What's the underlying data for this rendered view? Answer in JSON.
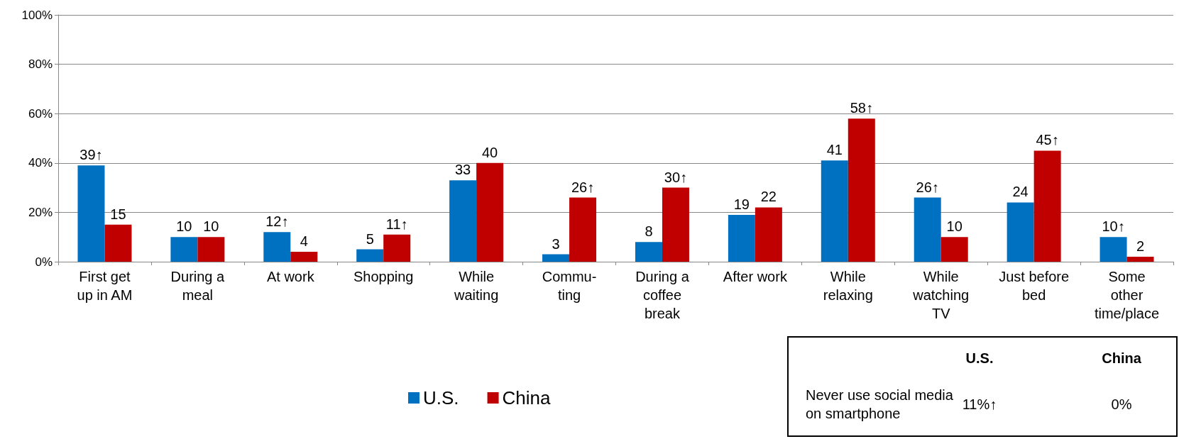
{
  "chart_data": {
    "type": "bar",
    "categories": [
      "First get\nup in AM",
      "During a\nmeal",
      "At work",
      "Shopping",
      "While\nwaiting",
      "Commu-\nting",
      "During a\ncoffee\nbreak",
      "After work",
      "While\nrelaxing",
      "While\nwatching\nTV",
      "Just before\nbed",
      "Some\nother\ntime/place"
    ],
    "series": [
      {
        "name": "U.S.",
        "color": "#0070c0",
        "values": [
          39,
          10,
          12,
          5,
          33,
          3,
          8,
          19,
          41,
          26,
          24,
          10
        ],
        "value_labels": [
          "39↑",
          "10",
          "12↑",
          "5",
          "33",
          "3",
          "8",
          "19",
          "41",
          "26↑",
          "24",
          "10↑"
        ]
      },
      {
        "name": "China",
        "color": "#c00000",
        "values": [
          15,
          10,
          4,
          11,
          40,
          26,
          30,
          22,
          58,
          10,
          45,
          2
        ],
        "value_labels": [
          "15",
          "10",
          "4",
          "11↑",
          "40",
          "26↑",
          "30↑",
          "22",
          "58↑",
          "10",
          "45↑",
          "2"
        ]
      }
    ],
    "ylim": [
      0,
      100
    ],
    "yticks": [
      {
        "value": 0,
        "label": "0%"
      },
      {
        "value": 20,
        "label": "20%"
      },
      {
        "value": 40,
        "label": "40%"
      },
      {
        "value": 60,
        "label": "60%"
      },
      {
        "value": 80,
        "label": "80%"
      },
      {
        "value": 100,
        "label": "100%"
      }
    ],
    "grid": "y",
    "legend": "bottom",
    "annotations": [
      "U.S.",
      "China",
      "Never use social media\non smartphone",
      "11%↑",
      "0%"
    ]
  }
}
